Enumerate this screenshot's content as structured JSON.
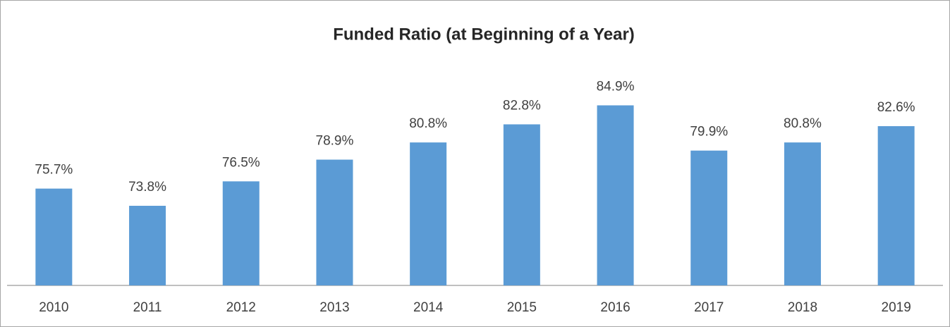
{
  "chart_data": {
    "type": "bar",
    "title": "Funded Ratio (at Beginning of a Year)",
    "categories": [
      "2010",
      "2011",
      "2012",
      "2013",
      "2014",
      "2015",
      "2016",
      "2017",
      "2018",
      "2019"
    ],
    "values": [
      75.7,
      73.8,
      76.5,
      78.9,
      80.8,
      82.8,
      84.9,
      79.9,
      80.8,
      82.6
    ],
    "value_labels": [
      "75.7%",
      "73.8%",
      "76.5%",
      "78.9%",
      "80.8%",
      "82.8%",
      "84.9%",
      "79.9%",
      "80.8%",
      "82.6%"
    ],
    "color": "#5b9bd5",
    "ylim": [
      65,
      90
    ]
  }
}
